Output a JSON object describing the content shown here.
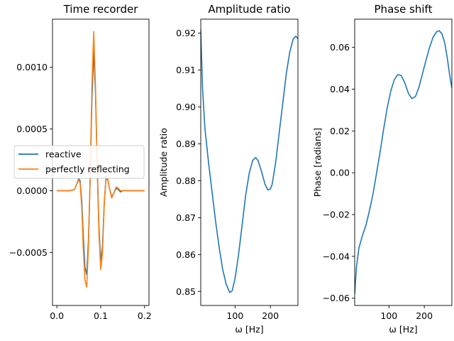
{
  "chart_data": [
    {
      "type": "line",
      "title": "Time recorder",
      "xlabel": "",
      "ylabel": "",
      "xlim": [
        -0.01,
        0.21
      ],
      "ylim": [
        -0.00093,
        0.00139
      ],
      "xticks": [
        {
          "value": 0.0,
          "label": "0.0"
        },
        {
          "value": 0.1,
          "label": "0.1"
        },
        {
          "value": 0.2,
          "label": "0.2"
        }
      ],
      "yticks": [
        {
          "value": -0.0005,
          "label": "−0.0005"
        },
        {
          "value": 0.0,
          "label": "0.0000"
        },
        {
          "value": 0.0005,
          "label": "0.0005"
        },
        {
          "value": 0.001,
          "label": "0.0010"
        }
      ],
      "legend": {
        "placement": "center-left"
      },
      "series": [
        {
          "name": "reactive",
          "color": "#1f77b4",
          "x": [
            0.0,
            0.03,
            0.04,
            0.045,
            0.05,
            0.053,
            0.057,
            0.06,
            0.064,
            0.068,
            0.072,
            0.076,
            0.08,
            0.084,
            0.088,
            0.092,
            0.096,
            0.1,
            0.104,
            0.108,
            0.112,
            0.116,
            0.12,
            0.125,
            0.13,
            0.135,
            0.14,
            0.145,
            0.15,
            0.155,
            0.16,
            0.17,
            0.18,
            0.2
          ],
          "y": [
            0.0,
            0.0,
            1e-05,
            5e-05,
            0.0001,
            8e-05,
            -0.0001,
            -0.00035,
            -0.00062,
            -0.00068,
            -0.0004,
            0.0001,
            0.00075,
            0.00113,
            0.0008,
            0.0002,
            -0.0003,
            -0.00058,
            -0.00045,
            -0.0001,
            0.0001,
            9e-05,
            2e-05,
            -5e-05,
            -2e-05,
            2e-05,
            1e-05,
            -1e-05,
            0.0,
            0.0,
            0.0,
            0.0,
            0.0,
            0.0
          ]
        },
        {
          "name": "perfectly reflecting",
          "color": "#ff7f0e",
          "x": [
            0.0,
            0.03,
            0.04,
            0.045,
            0.05,
            0.053,
            0.057,
            0.06,
            0.064,
            0.068,
            0.072,
            0.076,
            0.08,
            0.084,
            0.088,
            0.092,
            0.096,
            0.1,
            0.104,
            0.108,
            0.112,
            0.116,
            0.12,
            0.125,
            0.13,
            0.135,
            0.14,
            0.145,
            0.15,
            0.155,
            0.16,
            0.17,
            0.18,
            0.2
          ],
          "y": [
            0.0,
            0.0,
            1e-05,
            5e-05,
            9e-05,
            6e-05,
            -0.00015,
            -0.00045,
            -0.00072,
            -0.00078,
            -0.00045,
            0.00012,
            0.00085,
            0.00129,
            0.00085,
            0.00018,
            -0.00035,
            -0.00064,
            -0.0005,
            -0.00012,
            0.00012,
            0.0001,
            2e-05,
            -6e-05,
            -2e-05,
            3e-05,
            2e-05,
            0.0,
            0.0,
            0.0,
            0.0,
            0.0,
            0.0,
            0.0
          ]
        }
      ]
    },
    {
      "type": "line",
      "title": "Amplitude ratio",
      "xlabel": "ω [Hz]",
      "ylabel": "Amplitude ratio",
      "xlim": [
        3,
        278
      ],
      "ylim": [
        0.8462,
        0.9238
      ],
      "xticks": [
        {
          "value": 100,
          "label": "100"
        },
        {
          "value": 200,
          "label": "200"
        }
      ],
      "yticks": [
        {
          "value": 0.85,
          "label": "0.85"
        },
        {
          "value": 0.86,
          "label": "0.86"
        },
        {
          "value": 0.87,
          "label": "0.87"
        },
        {
          "value": 0.88,
          "label": "0.88"
        },
        {
          "value": 0.89,
          "label": "0.89"
        },
        {
          "value": 0.9,
          "label": "0.90"
        },
        {
          "value": 0.91,
          "label": "0.91"
        },
        {
          "value": 0.92,
          "label": "0.92"
        }
      ],
      "series": [
        {
          "name": "",
          "color": "#1f77b4",
          "x": [
            3,
            8,
            15,
            25,
            35,
            45,
            55,
            65,
            75,
            85,
            92,
            100,
            110,
            120,
            130,
            140,
            150,
            158,
            165,
            175,
            185,
            193,
            200,
            205,
            215,
            225,
            235,
            245,
            255,
            265,
            272,
            278
          ],
          "y": [
            0.921,
            0.905,
            0.894,
            0.885,
            0.877,
            0.869,
            0.862,
            0.856,
            0.852,
            0.8497,
            0.8502,
            0.8535,
            0.86,
            0.868,
            0.876,
            0.882,
            0.8855,
            0.8863,
            0.8855,
            0.8825,
            0.879,
            0.8775,
            0.8778,
            0.879,
            0.885,
            0.893,
            0.901,
            0.909,
            0.915,
            0.9185,
            0.9192,
            0.9185
          ]
        }
      ]
    },
    {
      "type": "line",
      "title": "Phase shift",
      "xlabel": "ω [Hz]",
      "ylabel": "Phase [radians]",
      "xlim": [
        3,
        278
      ],
      "ylim": [
        -0.0635,
        0.0735
      ],
      "xticks": [
        {
          "value": 100,
          "label": "100"
        },
        {
          "value": 200,
          "label": "200"
        }
      ],
      "yticks": [
        {
          "value": -0.06,
          "label": "−0.06"
        },
        {
          "value": -0.04,
          "label": "−0.04"
        },
        {
          "value": -0.02,
          "label": "−0.02"
        },
        {
          "value": 0.0,
          "label": "0.00"
        },
        {
          "value": 0.02,
          "label": "0.02"
        },
        {
          "value": 0.04,
          "label": "0.04"
        },
        {
          "value": 0.06,
          "label": "0.06"
        }
      ],
      "series": [
        {
          "name": "",
          "color": "#1f77b4",
          "x": [
            3,
            8,
            15,
            25,
            35,
            45,
            55,
            65,
            75,
            85,
            95,
            105,
            115,
            125,
            135,
            145,
            155,
            165,
            175,
            185,
            195,
            205,
            215,
            225,
            235,
            242,
            250,
            258,
            265,
            272,
            278
          ],
          "y": [
            -0.058,
            -0.045,
            -0.036,
            -0.03,
            -0.025,
            -0.018,
            -0.01,
            0.0,
            0.01,
            0.021,
            0.031,
            0.039,
            0.0445,
            0.047,
            0.0465,
            0.043,
            0.038,
            0.0355,
            0.0365,
            0.041,
            0.0475,
            0.054,
            0.06,
            0.065,
            0.0675,
            0.068,
            0.0665,
            0.062,
            0.055,
            0.0465,
            0.0405
          ]
        }
      ]
    }
  ]
}
